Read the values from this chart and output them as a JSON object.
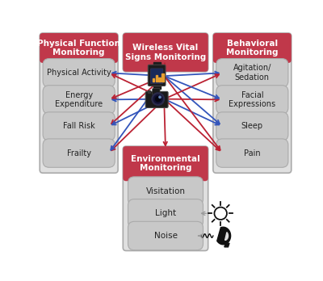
{
  "background_color": "#ffffff",
  "header_color": "#c0384a",
  "header_text_color": "#ffffff",
  "box_bg_color": "#c8c8c8",
  "box_border_color": "#aaaaaa",
  "container_bg_color": "#e0e0e0",
  "container_border_color": "#aaaaaa",
  "left_header": "Physical Function\nMonitoring",
  "left_items": [
    "Physical Activity",
    "Energy\nExpenditure",
    "Fall Risk",
    "Frailty"
  ],
  "center_header": "Wireless Vital\nSigns Monitoring",
  "right_header": "Behavioral\nMonitoring",
  "right_items": [
    "Agitation/\nSedation",
    "Facial\nExpressions",
    "Sleep",
    "Pain"
  ],
  "bottom_header": "Environmental\nMonitoring",
  "bottom_items": [
    "Visitation",
    "Light",
    "Noise"
  ],
  "arrow_blue": "#3355bb",
  "arrow_red": "#bb2233",
  "arrow_gray": "#999999"
}
